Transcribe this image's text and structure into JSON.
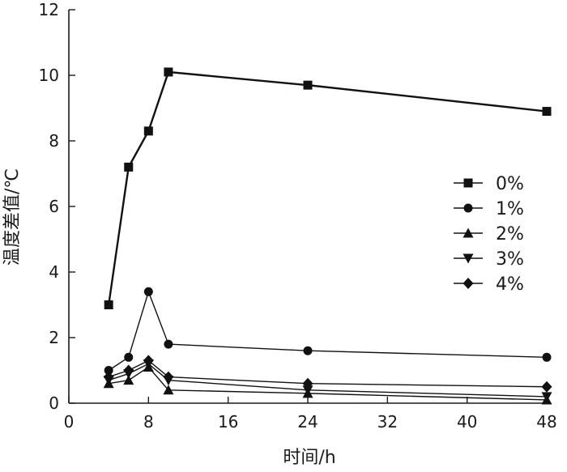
{
  "chart_data": {
    "type": "line",
    "xlabel": "时间/h",
    "ylabel": "温度差值/℃",
    "xlim": [
      0,
      48
    ],
    "ylim": [
      0,
      12
    ],
    "x_ticks": [
      "0",
      "8",
      "16",
      "24",
      "32",
      "40",
      "48"
    ],
    "x_tick_values": [
      0,
      8,
      16,
      24,
      32,
      40,
      48
    ],
    "y_ticks": [
      "0",
      "2",
      "4",
      "6",
      "8",
      "10",
      "12"
    ],
    "y_tick_values": [
      0,
      2,
      4,
      6,
      8,
      10,
      12
    ],
    "grid": false,
    "legend_position": "right",
    "x": [
      4,
      6,
      8,
      10,
      24,
      48
    ],
    "series": [
      {
        "name": "0%",
        "marker": "square",
        "values": [
          3.0,
          7.2,
          8.3,
          10.1,
          9.7,
          8.9
        ]
      },
      {
        "name": "1%",
        "marker": "circle",
        "values": [
          1.0,
          1.4,
          3.4,
          1.8,
          1.6,
          1.4
        ]
      },
      {
        "name": "2%",
        "marker": "triangle-up",
        "values": [
          0.6,
          0.7,
          1.1,
          0.4,
          0.3,
          0.1
        ]
      },
      {
        "name": "3%",
        "marker": "triangle-down",
        "values": [
          0.7,
          0.9,
          1.2,
          0.7,
          0.4,
          0.2
        ]
      },
      {
        "name": "4%",
        "marker": "diamond",
        "values": [
          0.8,
          1.0,
          1.3,
          0.8,
          0.6,
          0.5
        ]
      }
    ],
    "colors": {
      "line": "#111111",
      "axis": "#1a1a1a"
    }
  }
}
